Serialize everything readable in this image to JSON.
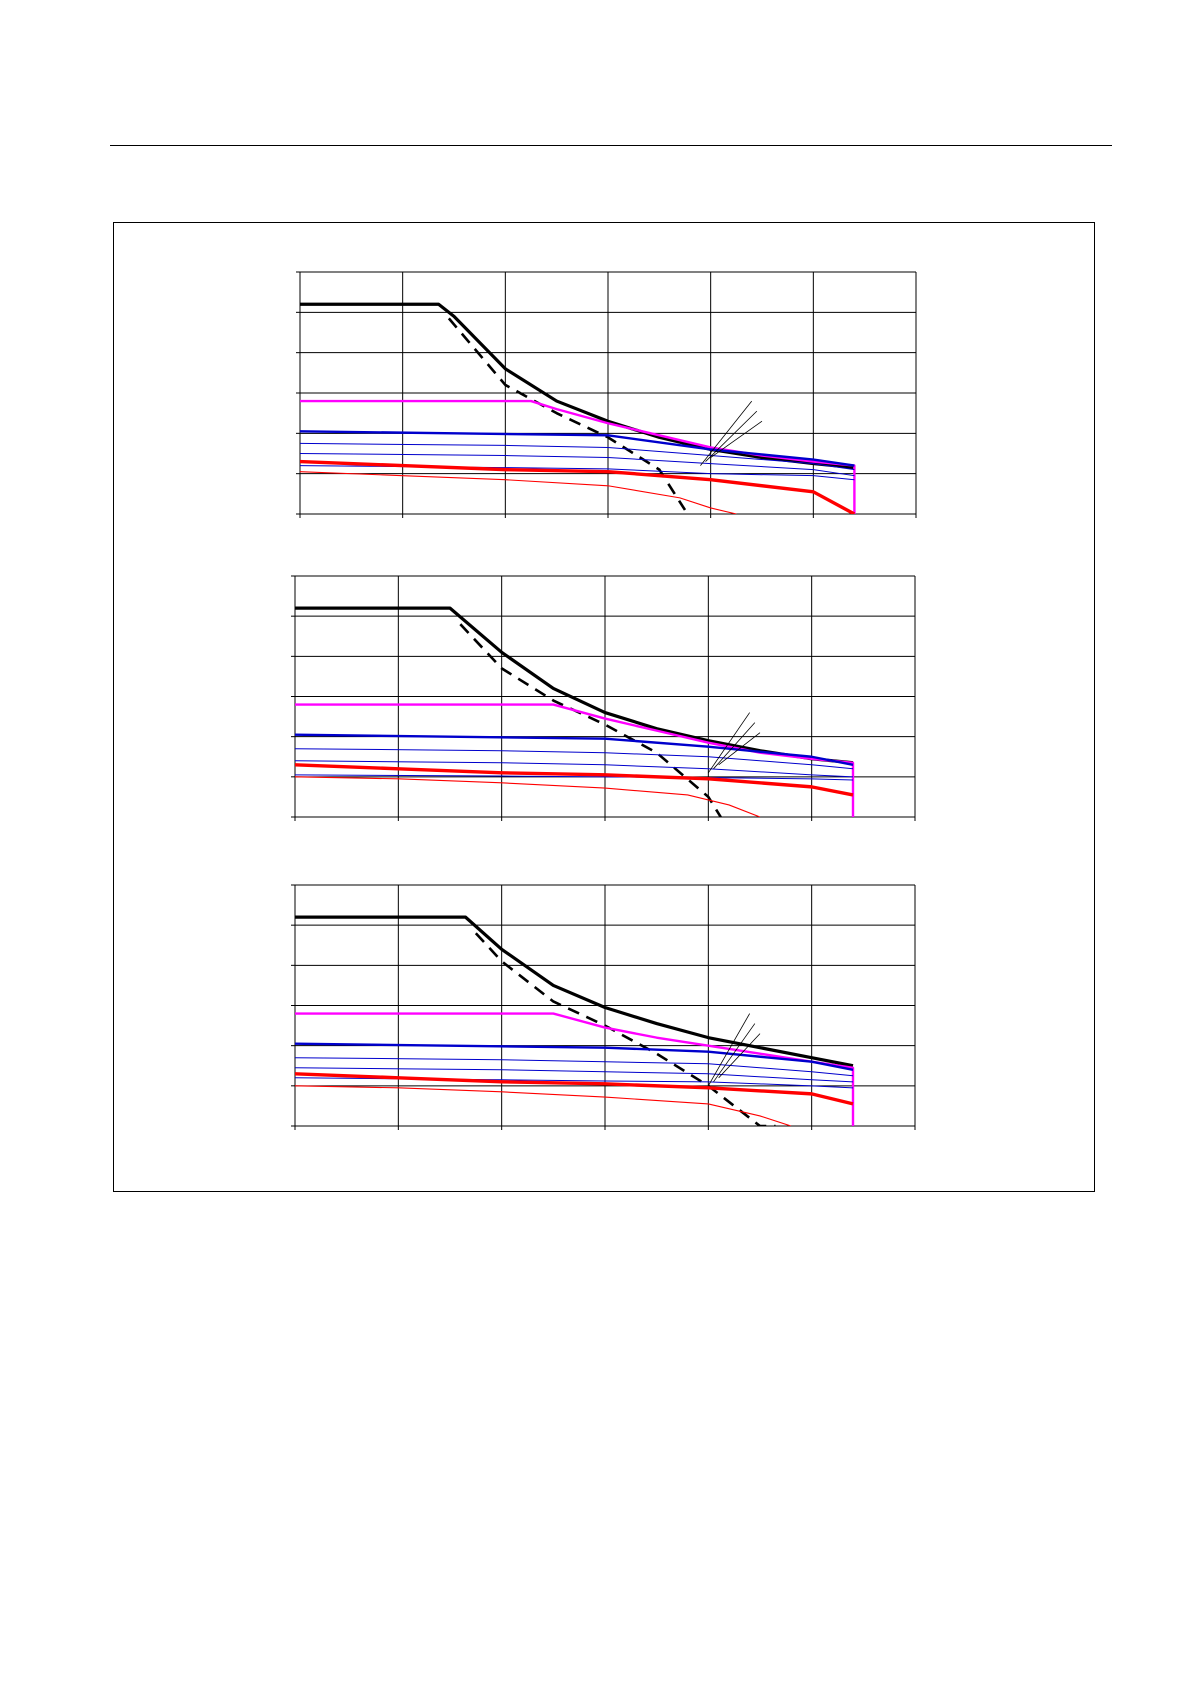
{
  "page": {
    "header_rule": true
  },
  "colors": {
    "black": "#000000",
    "magenta": "#ff00ff",
    "blue": "#0000cc",
    "red": "#ff0000"
  },
  "chart_data": [
    {
      "type": "line",
      "xlim": [
        0,
        6
      ],
      "ylim": [
        0,
        6
      ],
      "grid": true,
      "x_divisions": 6,
      "y_divisions": 6,
      "series": [
        {
          "style": "black-thick",
          "points": [
            [
              0,
              5.2
            ],
            [
              1.35,
              5.2
            ],
            [
              1.5,
              4.9
            ],
            [
              2,
              3.6
            ],
            [
              2.5,
              2.8
            ],
            [
              3,
              2.3
            ],
            [
              3.5,
              1.9
            ],
            [
              4,
              1.6
            ],
            [
              4.5,
              1.4
            ],
            [
              5,
              1.25
            ],
            [
              5.4,
              1.15
            ]
          ]
        },
        {
          "style": "black-dashed",
          "points": [
            [
              1.45,
              4.85
            ],
            [
              2,
              3.2
            ],
            [
              2.5,
              2.5
            ],
            [
              3,
              1.9
            ],
            [
              3.5,
              1.1
            ],
            [
              3.75,
              0.1
            ]
          ]
        },
        {
          "style": "magenta",
          "points": [
            [
              0,
              2.8
            ],
            [
              2.25,
              2.8
            ],
            [
              2.5,
              2.6
            ],
            [
              3,
              2.25
            ],
            [
              3.5,
              1.95
            ],
            [
              4,
              1.65
            ],
            [
              4.5,
              1.45
            ],
            [
              5,
              1.3
            ],
            [
              5.4,
              1.2
            ],
            [
              5.4,
              0
            ]
          ]
        },
        {
          "style": "blue-thick",
          "points": [
            [
              0,
              2.05
            ],
            [
              1.5,
              2.0
            ],
            [
              3,
              1.95
            ],
            [
              4,
              1.6
            ],
            [
              5,
              1.35
            ],
            [
              5.4,
              1.2
            ]
          ]
        },
        {
          "style": "blue-thin",
          "points": [
            [
              0,
              1.75
            ],
            [
              2,
              1.7
            ],
            [
              3,
              1.65
            ],
            [
              4,
              1.45
            ],
            [
              5,
              1.25
            ],
            [
              5.4,
              1.1
            ]
          ]
        },
        {
          "style": "blue-thin",
          "points": [
            [
              0,
              1.5
            ],
            [
              2,
              1.45
            ],
            [
              3,
              1.4
            ],
            [
              4,
              1.25
            ],
            [
              5,
              1.1
            ],
            [
              5.4,
              0.95
            ]
          ]
        },
        {
          "style": "blue-thin",
          "points": [
            [
              0,
              1.2
            ],
            [
              2,
              1.15
            ],
            [
              3,
              1.12
            ],
            [
              4,
              1.0
            ],
            [
              5,
              0.95
            ],
            [
              5.4,
              0.85
            ]
          ]
        },
        {
          "style": "red-thick",
          "points": [
            [
              0,
              1.3
            ],
            [
              1,
              1.2
            ],
            [
              2,
              1.1
            ],
            [
              3,
              1.05
            ],
            [
              4,
              0.85
            ],
            [
              5,
              0.55
            ],
            [
              5.4,
              0
            ]
          ]
        },
        {
          "style": "red-thin",
          "points": [
            [
              0,
              1.05
            ],
            [
              1,
              0.95
            ],
            [
              2,
              0.85
            ],
            [
              3,
              0.7
            ],
            [
              3.7,
              0.4
            ],
            [
              4,
              0.15
            ],
            [
              4.25,
              0
            ]
          ]
        }
      ],
      "annotation_lines": [
        [
          [
            3.9,
            1.2
          ],
          [
            4.4,
            2.8
          ]
        ],
        [
          [
            3.95,
            1.3
          ],
          [
            4.45,
            2.55
          ]
        ],
        [
          [
            4.0,
            1.4
          ],
          [
            4.5,
            2.3
          ]
        ]
      ]
    },
    {
      "type": "line",
      "xlim": [
        0,
        6
      ],
      "ylim": [
        0,
        6
      ],
      "grid": true,
      "x_divisions": 6,
      "y_divisions": 6,
      "series": [
        {
          "style": "black-thick",
          "points": [
            [
              0,
              5.2
            ],
            [
              1.5,
              5.2
            ],
            [
              2,
              4.1
            ],
            [
              2.5,
              3.2
            ],
            [
              3,
              2.6
            ],
            [
              3.5,
              2.2
            ],
            [
              4,
              1.9
            ],
            [
              4.5,
              1.65
            ],
            [
              5,
              1.45
            ],
            [
              5.4,
              1.35
            ]
          ]
        },
        {
          "style": "black-dashed",
          "points": [
            [
              1.6,
              4.8
            ],
            [
              2,
              3.7
            ],
            [
              2.5,
              2.9
            ],
            [
              3,
              2.3
            ],
            [
              3.5,
              1.6
            ],
            [
              4,
              0.5
            ],
            [
              4.12,
              0
            ]
          ]
        },
        {
          "style": "magenta",
          "points": [
            [
              0,
              2.8
            ],
            [
              2.5,
              2.8
            ],
            [
              3,
              2.45
            ],
            [
              3.5,
              2.15
            ],
            [
              4,
              1.85
            ],
            [
              4.5,
              1.6
            ],
            [
              5,
              1.45
            ],
            [
              5.4,
              1.35
            ],
            [
              5.4,
              0
            ]
          ]
        },
        {
          "style": "blue-thick",
          "points": [
            [
              0,
              2.05
            ],
            [
              1.5,
              2.0
            ],
            [
              3,
              1.95
            ],
            [
              4,
              1.75
            ],
            [
              5,
              1.5
            ],
            [
              5.4,
              1.3
            ]
          ]
        },
        {
          "style": "blue-thin",
          "points": [
            [
              0,
              1.7
            ],
            [
              2,
              1.65
            ],
            [
              3,
              1.6
            ],
            [
              4,
              1.5
            ],
            [
              5,
              1.3
            ],
            [
              5.4,
              1.2
            ]
          ]
        },
        {
          "style": "blue-thin",
          "points": [
            [
              0,
              1.4
            ],
            [
              2,
              1.35
            ],
            [
              3,
              1.3
            ],
            [
              4,
              1.2
            ],
            [
              5,
              1.05
            ],
            [
              5.4,
              1.0
            ]
          ]
        },
        {
          "style": "blue-thin",
          "points": [
            [
              0,
              1.05
            ],
            [
              2,
              1.02
            ],
            [
              3,
              1.0
            ],
            [
              4,
              0.98
            ],
            [
              5,
              0.95
            ],
            [
              5.4,
              0.92
            ]
          ]
        },
        {
          "style": "red-thick",
          "points": [
            [
              0,
              1.3
            ],
            [
              1,
              1.2
            ],
            [
              2,
              1.1
            ],
            [
              3,
              1.05
            ],
            [
              4,
              0.95
            ],
            [
              5,
              0.75
            ],
            [
              5.4,
              0.55
            ]
          ]
        },
        {
          "style": "red-thin",
          "points": [
            [
              0,
              1.0
            ],
            [
              1,
              0.95
            ],
            [
              2,
              0.85
            ],
            [
              3,
              0.72
            ],
            [
              3.8,
              0.55
            ],
            [
              4.2,
              0.3
            ],
            [
              4.5,
              0
            ]
          ]
        }
      ],
      "annotation_lines": [
        [
          [
            4.0,
            1.1
          ],
          [
            4.4,
            2.6
          ]
        ],
        [
          [
            4.05,
            1.2
          ],
          [
            4.45,
            2.35
          ]
        ],
        [
          [
            4.1,
            1.3
          ],
          [
            4.5,
            2.1
          ]
        ]
      ]
    },
    {
      "type": "line",
      "xlim": [
        0,
        6
      ],
      "ylim": [
        0,
        6
      ],
      "grid": true,
      "x_divisions": 6,
      "y_divisions": 6,
      "series": [
        {
          "style": "black-thick",
          "points": [
            [
              0,
              5.2
            ],
            [
              1.65,
              5.2
            ],
            [
              2,
              4.4
            ],
            [
              2.5,
              3.5
            ],
            [
              3,
              2.95
            ],
            [
              3.5,
              2.55
            ],
            [
              4,
              2.2
            ],
            [
              4.5,
              1.95
            ],
            [
              5,
              1.7
            ],
            [
              5.4,
              1.5
            ]
          ]
        },
        {
          "style": "black-dashed",
          "points": [
            [
              1.75,
              4.8
            ],
            [
              2,
              4.1
            ],
            [
              2.5,
              3.1
            ],
            [
              3,
              2.5
            ],
            [
              3.5,
              1.8
            ],
            [
              4,
              1.0
            ],
            [
              4.5,
              0
            ],
            [
              4.65,
              0
            ]
          ]
        },
        {
          "style": "magenta",
          "points": [
            [
              0,
              2.8
            ],
            [
              2.5,
              2.8
            ],
            [
              3,
              2.45
            ],
            [
              3.5,
              2.2
            ],
            [
              4,
              2.0
            ],
            [
              4.5,
              1.8
            ],
            [
              5,
              1.6
            ],
            [
              5.4,
              1.45
            ],
            [
              5.4,
              0
            ]
          ]
        },
        {
          "style": "blue-thick",
          "points": [
            [
              0,
              2.05
            ],
            [
              1.5,
              2.0
            ],
            [
              3,
              1.95
            ],
            [
              4,
              1.85
            ],
            [
              5,
              1.6
            ],
            [
              5.4,
              1.4
            ]
          ]
        },
        {
          "style": "blue-thin",
          "points": [
            [
              0,
              1.7
            ],
            [
              2,
              1.65
            ],
            [
              3,
              1.6
            ],
            [
              4,
              1.55
            ],
            [
              5,
              1.35
            ],
            [
              5.4,
              1.25
            ]
          ]
        },
        {
          "style": "blue-thin",
          "points": [
            [
              0,
              1.45
            ],
            [
              2,
              1.4
            ],
            [
              3,
              1.35
            ],
            [
              4,
              1.3
            ],
            [
              5,
              1.15
            ],
            [
              5.4,
              1.1
            ]
          ]
        },
        {
          "style": "blue-thin",
          "points": [
            [
              0,
              1.2
            ],
            [
              2,
              1.15
            ],
            [
              3,
              1.12
            ],
            [
              4,
              1.1
            ],
            [
              5,
              1.0
            ],
            [
              5.4,
              0.95
            ]
          ]
        },
        {
          "style": "red-thick",
          "points": [
            [
              0,
              1.3
            ],
            [
              1,
              1.2
            ],
            [
              2,
              1.1
            ],
            [
              3,
              1.05
            ],
            [
              4,
              0.95
            ],
            [
              5,
              0.8
            ],
            [
              5.4,
              0.55
            ]
          ]
        },
        {
          "style": "red-thin",
          "points": [
            [
              0,
              1.0
            ],
            [
              1,
              0.95
            ],
            [
              2,
              0.85
            ],
            [
              3,
              0.72
            ],
            [
              4,
              0.55
            ],
            [
              4.5,
              0.25
            ],
            [
              4.8,
              0
            ]
          ]
        }
      ],
      "annotation_lines": [
        [
          [
            4.0,
            1.0
          ],
          [
            4.4,
            2.8
          ]
        ],
        [
          [
            4.05,
            1.1
          ],
          [
            4.45,
            2.55
          ]
        ],
        [
          [
            4.1,
            1.2
          ],
          [
            4.5,
            2.3
          ]
        ]
      ]
    }
  ]
}
